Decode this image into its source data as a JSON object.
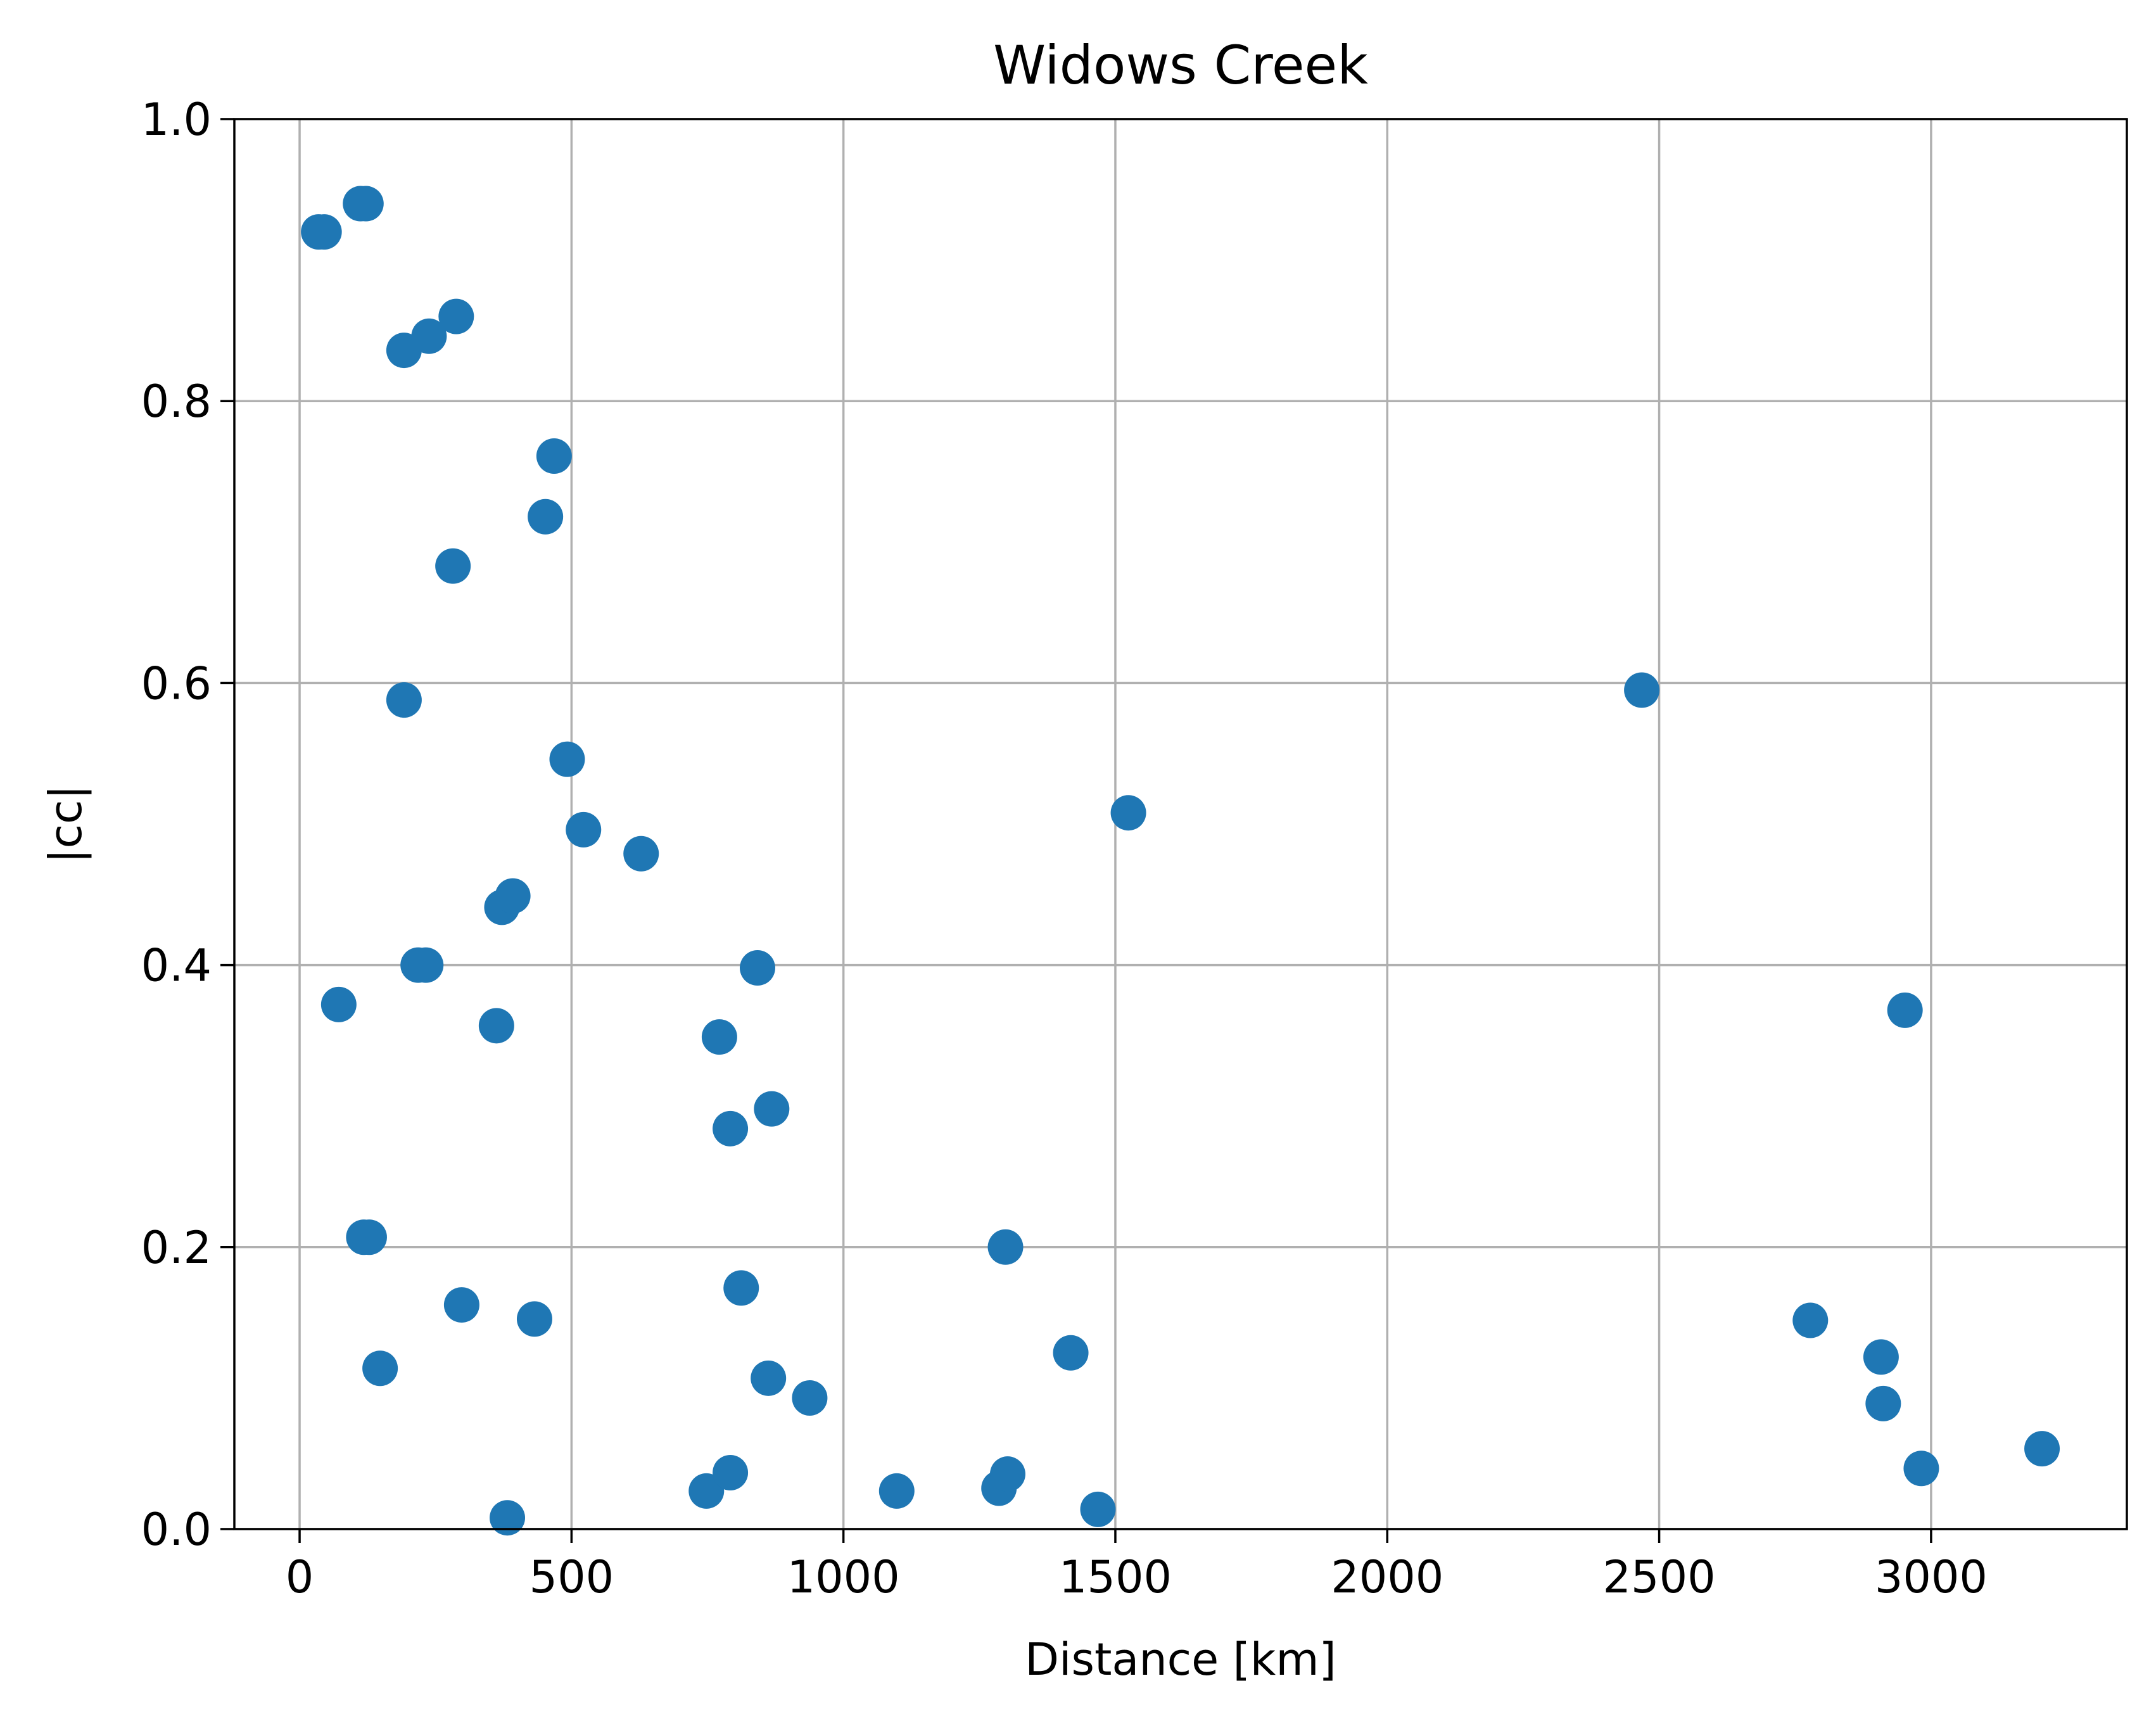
{
  "chart_data": {
    "type": "scatter",
    "title": "Widows Creek",
    "xlabel": "Distance [km]",
    "ylabel": "|cc|",
    "xlim": [
      -120,
      3360
    ],
    "ylim": [
      0,
      1.0
    ],
    "grid": true,
    "xticks": [
      0,
      500,
      1000,
      1500,
      2000,
      2500,
      3000
    ],
    "yticks": [
      0.0,
      0.2,
      0.4,
      0.6,
      0.8,
      1.0
    ],
    "xtick_labels": [
      "0",
      "500",
      "1000",
      "1500",
      "2000",
      "2500",
      "3000"
    ],
    "ytick_labels": [
      "0.0",
      "0.2",
      "0.4",
      "0.6",
      "0.8",
      "1.0"
    ],
    "color": "#1f77b4",
    "series": [
      {
        "x": [
          35,
          45,
          112,
          122,
          192,
          238,
          288,
          72,
          192,
          282,
          218,
          232,
          362,
          372,
          392,
          452,
          468,
          492,
          522,
          628,
          842,
          772,
          792,
          868,
          118,
          128,
          148,
          298,
          432,
          382,
          812,
          862,
          938,
          748,
          792,
          1098,
          1298,
          1286,
          1302,
          1418,
          1468,
          1524,
          2468,
          2778,
          2908,
          2912,
          2952,
          2982,
          3204
        ],
        "y": [
          0.92,
          0.92,
          0.94,
          0.94,
          0.836,
          0.846,
          0.86,
          0.372,
          0.588,
          0.683,
          0.4,
          0.4,
          0.357,
          0.441,
          0.449,
          0.718,
          0.761,
          0.546,
          0.496,
          0.479,
          0.398,
          0.349,
          0.284,
          0.298,
          0.207,
          0.207,
          0.114,
          0.159,
          0.149,
          0.008,
          0.171,
          0.107,
          0.093,
          0.027,
          0.04,
          0.027,
          0.2,
          0.029,
          0.039,
          0.125,
          0.014,
          0.508,
          0.595,
          0.148,
          0.122,
          0.089,
          0.368,
          0.043,
          0.057
        ]
      }
    ]
  }
}
